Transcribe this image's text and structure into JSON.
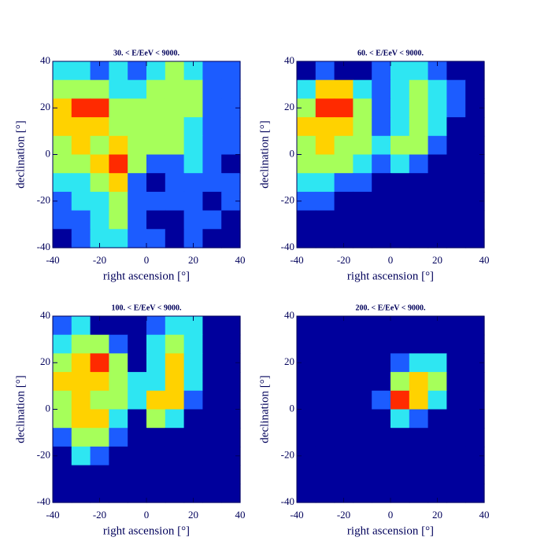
{
  "chart_data": [
    {
      "type": "heatmap",
      "title": "30. < E/EeV <  9000.",
      "xlabel": "right ascension [°]",
      "ylabel": "declination [°]",
      "xlim": [
        -40,
        40
      ],
      "ylim": [
        -40,
        40
      ],
      "xticks": [
        -40,
        -20,
        0,
        20,
        40
      ],
      "yticks": [
        -40,
        -20,
        0,
        20,
        40
      ],
      "colors": [
        "#00009c",
        "#1c5cff",
        "#2ee6f2",
        "#a6ff5a",
        "#ffd200",
        "#ff2a00"
      ],
      "z": [
        [
          2,
          2,
          1,
          2,
          1,
          2,
          3,
          2,
          1,
          1
        ],
        [
          3,
          3,
          3,
          2,
          2,
          3,
          3,
          3,
          1,
          1
        ],
        [
          4,
          5,
          5,
          3,
          3,
          3,
          3,
          3,
          1,
          1
        ],
        [
          4,
          4,
          4,
          3,
          3,
          3,
          3,
          2,
          1,
          1
        ],
        [
          3,
          4,
          3,
          4,
          3,
          3,
          3,
          2,
          1,
          1
        ],
        [
          3,
          3,
          4,
          5,
          3,
          1,
          1,
          2,
          1,
          0
        ],
        [
          2,
          2,
          3,
          4,
          1,
          0,
          1,
          1,
          1,
          1
        ],
        [
          1,
          2,
          2,
          3,
          1,
          1,
          1,
          1,
          0,
          1
        ],
        [
          1,
          1,
          2,
          3,
          1,
          0,
          0,
          1,
          1,
          0
        ],
        [
          0,
          1,
          2,
          2,
          1,
          1,
          0,
          1,
          0,
          0
        ]
      ]
    },
    {
      "type": "heatmap",
      "title": "60. < E/EeV <  9000.",
      "xlabel": "right ascension [°]",
      "ylabel": "declination [°]",
      "xlim": [
        -40,
        40
      ],
      "ylim": [
        -40,
        40
      ],
      "xticks": [
        -40,
        -20,
        0,
        20,
        40
      ],
      "yticks": [
        -40,
        -20,
        0,
        20,
        40
      ],
      "colors": [
        "#00009c",
        "#1c5cff",
        "#2ee6f2",
        "#a6ff5a",
        "#ffd200",
        "#ff2a00"
      ],
      "z": [
        [
          0,
          1,
          0,
          0,
          1,
          2,
          2,
          1,
          0,
          0
        ],
        [
          2,
          4,
          4,
          2,
          1,
          2,
          3,
          2,
          1,
          0
        ],
        [
          3,
          5,
          5,
          3,
          1,
          2,
          3,
          2,
          1,
          0
        ],
        [
          4,
          4,
          4,
          3,
          1,
          2,
          3,
          2,
          0,
          0
        ],
        [
          3,
          4,
          3,
          3,
          2,
          3,
          3,
          1,
          0,
          0
        ],
        [
          3,
          3,
          3,
          2,
          1,
          2,
          1,
          0,
          0,
          0
        ],
        [
          2,
          2,
          1,
          1,
          0,
          0,
          0,
          0,
          0,
          0
        ],
        [
          1,
          1,
          0,
          0,
          0,
          0,
          0,
          0,
          0,
          0
        ],
        [
          0,
          0,
          0,
          0,
          0,
          0,
          0,
          0,
          0,
          0
        ],
        [
          0,
          0,
          0,
          0,
          0,
          0,
          0,
          0,
          0,
          0
        ]
      ]
    },
    {
      "type": "heatmap",
      "title": "100. < E/EeV <  9000.",
      "xlabel": "right ascension [°]",
      "ylabel": "declination [°]",
      "xlim": [
        -40,
        40
      ],
      "ylim": [
        -40,
        40
      ],
      "xticks": [
        -40,
        -20,
        0,
        20,
        40
      ],
      "yticks": [
        -40,
        -20,
        0,
        20,
        40
      ],
      "colors": [
        "#00009c",
        "#1c5cff",
        "#2ee6f2",
        "#a6ff5a",
        "#ffd200",
        "#ff2a00"
      ],
      "z": [
        [
          1,
          2,
          0,
          0,
          0,
          1,
          2,
          2,
          0,
          0
        ],
        [
          2,
          3,
          3,
          1,
          0,
          2,
          3,
          2,
          0,
          0
        ],
        [
          3,
          4,
          5,
          3,
          0,
          2,
          4,
          2,
          0,
          0
        ],
        [
          4,
          4,
          4,
          3,
          2,
          2,
          4,
          2,
          0,
          0
        ],
        [
          3,
          4,
          3,
          3,
          2,
          4,
          4,
          1,
          0,
          0
        ],
        [
          3,
          4,
          4,
          2,
          0,
          3,
          2,
          0,
          0,
          0
        ],
        [
          1,
          3,
          3,
          1,
          0,
          0,
          0,
          0,
          0,
          0
        ],
        [
          0,
          2,
          1,
          0,
          0,
          0,
          0,
          0,
          0,
          0
        ],
        [
          0,
          0,
          0,
          0,
          0,
          0,
          0,
          0,
          0,
          0
        ],
        [
          0,
          0,
          0,
          0,
          0,
          0,
          0,
          0,
          0,
          0
        ]
      ]
    },
    {
      "type": "heatmap",
      "title": "200. < E/EeV <  9000.",
      "xlabel": "right ascension [°]",
      "ylabel": "declination [°]",
      "xlim": [
        -40,
        40
      ],
      "ylim": [
        -40,
        40
      ],
      "xticks": [
        -40,
        -20,
        0,
        20,
        40
      ],
      "yticks": [
        -40,
        -20,
        0,
        20,
        40
      ],
      "colors": [
        "#00009c",
        "#1c5cff",
        "#2ee6f2",
        "#a6ff5a",
        "#ffd200",
        "#ff2a00"
      ],
      "z": [
        [
          0,
          0,
          0,
          0,
          0,
          0,
          0,
          0,
          0,
          0
        ],
        [
          0,
          0,
          0,
          0,
          0,
          0,
          0,
          0,
          0,
          0
        ],
        [
          0,
          0,
          0,
          0,
          0,
          1,
          2,
          2,
          0,
          0
        ],
        [
          0,
          0,
          0,
          0,
          0,
          3,
          4,
          3,
          0,
          0
        ],
        [
          0,
          0,
          0,
          0,
          1,
          5,
          4,
          2,
          0,
          0
        ],
        [
          0,
          0,
          0,
          0,
          0,
          2,
          1,
          0,
          0,
          0
        ],
        [
          0,
          0,
          0,
          0,
          0,
          0,
          0,
          0,
          0,
          0
        ],
        [
          0,
          0,
          0,
          0,
          0,
          0,
          0,
          0,
          0,
          0
        ],
        [
          0,
          0,
          0,
          0,
          0,
          0,
          0,
          0,
          0,
          0
        ],
        [
          0,
          0,
          0,
          0,
          0,
          0,
          0,
          0,
          0,
          0
        ]
      ]
    }
  ]
}
